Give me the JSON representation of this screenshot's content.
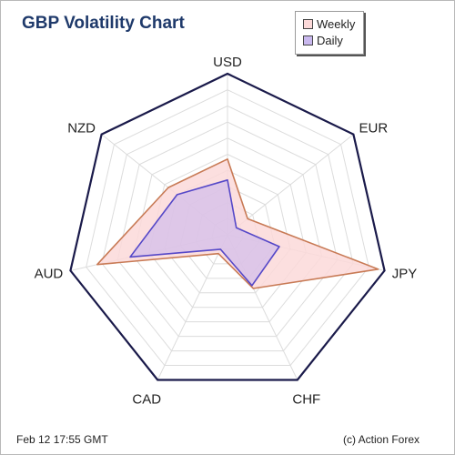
{
  "title": "GBP Volatility Chart",
  "footer": {
    "timestamp": "Feb 12  17:55 GMT",
    "credit": "(c) Action Forex"
  },
  "colors": {
    "outer_frame": "#1a1a4a",
    "grid": "#dcdcdc",
    "weekly_fill": "#fcd9d9",
    "weekly_stroke": "#c87a55",
    "daily_fill": "#c9b8ee",
    "daily_stroke": "#5548c8"
  },
  "chart_data": {
    "type": "radar",
    "title": "GBP Volatility Chart",
    "categories": [
      "USD",
      "EUR",
      "JPY",
      "CHF",
      "CAD",
      "AUD",
      "NZD"
    ],
    "series": [
      {
        "name": "Weekly",
        "values": [
          0.47,
          0.16,
          0.96,
          0.37,
          0.13,
          0.83,
          0.47
        ]
      },
      {
        "name": "Daily",
        "values": [
          0.34,
          0.07,
          0.33,
          0.35,
          0.1,
          0.62,
          0.4
        ]
      }
    ],
    "rlim": [
      0,
      1
    ],
    "grid": true,
    "legend": "top-right"
  }
}
